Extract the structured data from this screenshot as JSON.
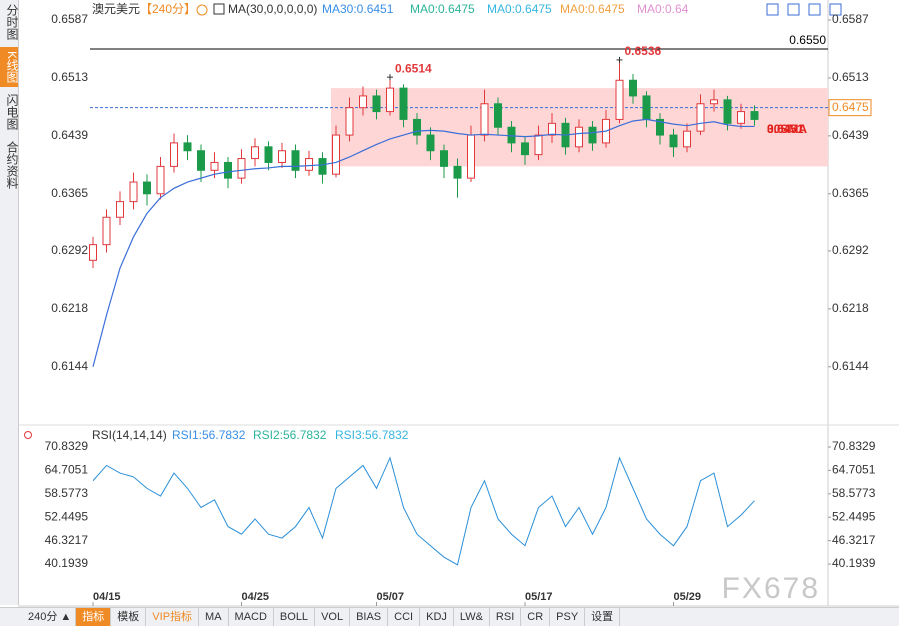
{
  "sidebar": [
    "分时图",
    "K线图",
    "闪电图",
    "合约资料"
  ],
  "header": {
    "symbol": "澳元美元",
    "period": "【240分】",
    "indicator": "MA(30,0,0,0,0,0)",
    "values": [
      {
        "text": "MA30:0.6451",
        "color": "#3a8ee6"
      },
      {
        "text": "MA0:0.6475",
        "color": "#2bb39a"
      },
      {
        "text": "MA0:0.6475",
        "color": "#35b6e0"
      },
      {
        "text": "MA0:0.6475",
        "color": "#f0a040"
      },
      {
        "text": "MA0:0.64",
        "color": "#e090d0"
      }
    ]
  },
  "chart_data": [
    {
      "type": "candlestick",
      "categories": [
        "04/15",
        null,
        null,
        null,
        null,
        null,
        null,
        null,
        null,
        null,
        null,
        "04/25",
        null,
        null,
        null,
        null,
        null,
        null,
        null,
        null,
        null,
        "05/07",
        null,
        null,
        null,
        null,
        null,
        null,
        null,
        null,
        null,
        null,
        "05/17",
        null,
        null,
        null,
        null,
        null,
        null,
        null,
        null,
        null,
        null,
        "05/29",
        null,
        null,
        null,
        null,
        null,
        null
      ],
      "open": [
        0.628,
        0.63,
        0.6335,
        0.6355,
        0.638,
        0.6365,
        0.64,
        0.643,
        0.642,
        0.6395,
        0.6405,
        0.6385,
        0.641,
        0.6425,
        0.6405,
        0.642,
        0.6395,
        0.641,
        0.639,
        0.644,
        0.6475,
        0.649,
        0.647,
        0.65,
        0.646,
        0.644,
        0.642,
        0.64,
        0.6385,
        0.644,
        0.648,
        0.645,
        0.643,
        0.6415,
        0.644,
        0.6455,
        0.6425,
        0.645,
        0.643,
        0.646,
        0.651,
        0.649,
        0.646,
        0.644,
        0.6425,
        0.6445,
        0.648,
        0.6485,
        0.6455,
        0.647
      ],
      "high": [
        0.631,
        0.6345,
        0.6368,
        0.6392,
        0.639,
        0.6412,
        0.6442,
        0.644,
        0.6428,
        0.6418,
        0.6412,
        0.6422,
        0.6436,
        0.6432,
        0.643,
        0.6428,
        0.642,
        0.6418,
        0.6452,
        0.6488,
        0.6502,
        0.6498,
        0.6514,
        0.6505,
        0.6468,
        0.645,
        0.6428,
        0.641,
        0.6452,
        0.6498,
        0.6488,
        0.6458,
        0.6438,
        0.6452,
        0.6468,
        0.6462,
        0.646,
        0.6458,
        0.6472,
        0.6536,
        0.6518,
        0.6496,
        0.6468,
        0.6448,
        0.6455,
        0.6492,
        0.6498,
        0.649,
        0.648,
        0.6478
      ],
      "low": [
        0.627,
        0.629,
        0.6325,
        0.6345,
        0.635,
        0.6358,
        0.6392,
        0.6408,
        0.638,
        0.6385,
        0.6372,
        0.6378,
        0.64,
        0.6395,
        0.6398,
        0.6385,
        0.6388,
        0.6378,
        0.6386,
        0.6432,
        0.6465,
        0.646,
        0.6465,
        0.645,
        0.6428,
        0.6408,
        0.6385,
        0.636,
        0.638,
        0.6432,
        0.644,
        0.6418,
        0.6402,
        0.6408,
        0.643,
        0.6415,
        0.6418,
        0.642,
        0.6424,
        0.6455,
        0.648,
        0.645,
        0.6428,
        0.6412,
        0.6418,
        0.644,
        0.647,
        0.6446,
        0.6448,
        0.6452
      ],
      "close": [
        0.63,
        0.6335,
        0.6355,
        0.638,
        0.6365,
        0.64,
        0.643,
        0.642,
        0.6395,
        0.6405,
        0.6385,
        0.641,
        0.6425,
        0.6405,
        0.642,
        0.6395,
        0.641,
        0.639,
        0.644,
        0.6475,
        0.649,
        0.647,
        0.65,
        0.646,
        0.644,
        0.642,
        0.64,
        0.6385,
        0.644,
        0.648,
        0.645,
        0.643,
        0.6415,
        0.644,
        0.6455,
        0.6425,
        0.645,
        0.643,
        0.646,
        0.651,
        0.649,
        0.646,
        0.644,
        0.6425,
        0.6445,
        0.648,
        0.6485,
        0.6455,
        0.647,
        0.646
      ],
      "up_color": "#e2383c",
      "down_color": "#1b9b4a",
      "ma30": {
        "color": "#3a6ed8",
        "values": [
          0.6144,
          0.621,
          0.627,
          0.631,
          0.634,
          0.636,
          0.6372,
          0.638,
          0.6385,
          0.639,
          0.6393,
          0.6395,
          0.6397,
          0.6398,
          0.64,
          0.64,
          0.6401,
          0.6402,
          0.6405,
          0.6412,
          0.642,
          0.6428,
          0.6435,
          0.644,
          0.6445,
          0.6446,
          0.6445,
          0.6442,
          0.644,
          0.6441,
          0.644,
          0.6439,
          0.6438,
          0.6439,
          0.6441,
          0.644,
          0.6442,
          0.6443,
          0.6445,
          0.6452,
          0.6458,
          0.646,
          0.6457,
          0.6454,
          0.6452,
          0.6455,
          0.6457,
          0.6453,
          0.6451,
          0.6451
        ]
      },
      "hline": {
        "value": 0.655,
        "label": "0.6550",
        "color": "#000000"
      },
      "price_line": {
        "value": 0.6475,
        "color": "#3a6ed8",
        "label_color": "#f08a24"
      },
      "zone": {
        "range": [
          0.64,
          0.65
        ],
        "color": "#ffd6d6"
      },
      "annotations": [
        {
          "text": "0.6514",
          "color": "#e2383c"
        },
        {
          "text": "0.6536",
          "color": "#e2383c"
        },
        {
          "text": "0.6451",
          "color": "#e2201c"
        },
        {
          "text": "30SMA",
          "color": "#e2201c"
        }
      ],
      "ylim": [
        0.6076,
        0.6587
      ],
      "yticks": [
        0.6587,
        0.6513,
        0.6439,
        0.6365,
        0.6292,
        0.6218,
        0.6144
      ]
    },
    {
      "type": "line",
      "title": "RSI(14,14,14)",
      "legend": [
        {
          "text": "RSI1:56.7832",
          "color": "#3a8ee6"
        },
        {
          "text": "RSI2:56.7832",
          "color": "#2bb39a"
        },
        {
          "text": "RSI3:56.7832",
          "color": "#35b6e0"
        }
      ],
      "color": "#2a8fd8",
      "values": [
        62,
        66,
        64,
        63,
        60,
        58,
        64,
        60,
        55,
        57,
        50,
        48,
        52,
        48,
        47,
        50,
        55,
        47,
        60,
        63,
        66,
        60,
        68,
        55,
        48,
        45,
        42,
        40,
        55,
        62,
        52,
        48,
        45,
        55,
        58,
        50,
        55,
        48,
        55,
        68,
        60,
        52,
        48,
        45,
        50,
        62,
        64,
        50,
        53,
        56.7832
      ],
      "ylim": [
        33.41,
        72.66
      ],
      "yticks": [
        70.8329,
        64.7051,
        58.5773,
        52.4495,
        46.3217,
        40.1939
      ]
    }
  ],
  "watermark": "FX678",
  "bottom": {
    "period": "240分 ▲",
    "tabs": [
      "指标",
      "模板",
      "VIP指标",
      "MA",
      "MACD",
      "BOLL",
      "VOL",
      "BIAS",
      "CCI",
      "KDJ",
      "LW&",
      "RSI",
      "CR",
      "PSY",
      "设置"
    ]
  }
}
